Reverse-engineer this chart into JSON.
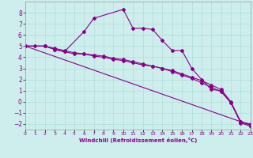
{
  "xlabel": "Windchill (Refroidissement éolien,°C)",
  "bg_color": "#cdeeed",
  "grid_color": "#b0ddd8",
  "line_color": "#880088",
  "xlim": [
    0,
    23
  ],
  "ylim": [
    -2.5,
    9.0
  ],
  "xticks": [
    0,
    1,
    2,
    3,
    4,
    5,
    6,
    7,
    8,
    9,
    10,
    11,
    12,
    13,
    14,
    15,
    16,
    17,
    18,
    19,
    20,
    21,
    22,
    23
  ],
  "yticks": [
    -2,
    -1,
    0,
    1,
    2,
    3,
    4,
    5,
    6,
    7,
    8
  ],
  "curve_main_x": [
    0,
    1,
    2,
    3,
    4,
    6,
    7,
    10,
    11,
    12,
    13,
    14,
    15,
    16,
    17,
    18,
    19,
    20,
    21,
    22,
    23
  ],
  "curve_main_y": [
    5.0,
    5.0,
    5.0,
    4.7,
    4.5,
    6.3,
    7.5,
    8.3,
    6.6,
    6.6,
    6.5,
    5.5,
    4.6,
    4.6,
    3.0,
    2.0,
    1.1,
    1.0,
    -0.1,
    -1.8,
    -2.0
  ],
  "curve_straight1_x": [
    0,
    2,
    3,
    4,
    5,
    6,
    7,
    8,
    9,
    10,
    11,
    12,
    13,
    14,
    15,
    16,
    17,
    18,
    19,
    20,
    21,
    22,
    23
  ],
  "curve_straight1_y": [
    5.0,
    5.0,
    4.7,
    4.5,
    4.3,
    4.3,
    4.1,
    4.0,
    3.8,
    3.7,
    3.5,
    3.3,
    3.2,
    3.0,
    2.8,
    2.5,
    2.2,
    1.9,
    1.5,
    1.1,
    0.0,
    -1.8,
    -2.1
  ],
  "curve_straight2_x": [
    0,
    2,
    3,
    4,
    5,
    6,
    7,
    8,
    9,
    10,
    11,
    12,
    13,
    14,
    15,
    16,
    17,
    18,
    19,
    20,
    21,
    22,
    23
  ],
  "curve_straight2_y": [
    5.0,
    5.0,
    4.8,
    4.6,
    4.4,
    4.3,
    4.2,
    4.1,
    3.9,
    3.8,
    3.6,
    3.4,
    3.2,
    3.0,
    2.7,
    2.4,
    2.1,
    1.7,
    1.3,
    0.9,
    -0.1,
    -1.9,
    -2.2
  ],
  "line_x": [
    0,
    23
  ],
  "line_y": [
    5.0,
    -2.1
  ]
}
